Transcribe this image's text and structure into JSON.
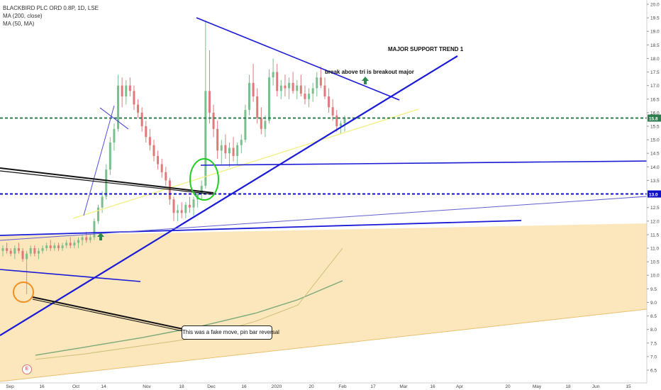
{
  "legend": {
    "symbol": "BLACKBIRD PLC ORD 0.8P, 1D, LSE",
    "ma200": "MA (200, close)",
    "ma50": "MA (50, MA)"
  },
  "annotations": {
    "major_support": "MAJOR SUPPORT TREND 1",
    "breakout": "break above tri  is breakout major",
    "fake_move": "This was a fake move, pin bar reversal",
    "earnings_flag": "E"
  },
  "colors": {
    "background": "#ffffff",
    "up_candle": "#7cbf8e",
    "down_candle": "#e07a7a",
    "trendline": "#1a1ad6",
    "support_band": "#fce3b0",
    "price_line": "#2e7d4f",
    "level_line": "#1010c8",
    "ma200": "#7aa87a",
    "ma50": "#c9c07a"
  },
  "chart_data": {
    "type": "candlestick",
    "y_axis": {
      "range": [
        6.2,
        20.05
      ],
      "ticks": [
        "6.5",
        "7.0",
        "7.5",
        "8.0",
        "8.5",
        "9.0",
        "9.5",
        "10.0",
        "10.5",
        "11.0",
        "11.5",
        "12.0",
        "12.5",
        "13.0",
        "13.5",
        "14.0",
        "14.5",
        "15.0",
        "15.5",
        "16.0",
        "16.5",
        "17.0",
        "17.5",
        "18.0",
        "18.5",
        "19.0",
        "19.5",
        "20.0"
      ]
    },
    "x_axis": {
      "labels": [
        "Sep",
        "16",
        "Oct",
        "14",
        "Nov",
        "18",
        "Dec",
        "16",
        "2020",
        "20",
        "Feb",
        "17",
        "Mar",
        "16",
        "Apr",
        "20",
        "May",
        "18",
        "Jun",
        "15"
      ]
    },
    "price_markers": [
      {
        "label": "15.8",
        "value": 15.8,
        "color": "#2e7d4f"
      },
      {
        "label": "13.0",
        "value": 13.0,
        "color": "#1010c8"
      }
    ],
    "candles": [
      [
        10.9,
        11.1,
        10.7,
        11.0
      ],
      [
        11.0,
        11.2,
        10.8,
        10.9
      ],
      [
        10.9,
        11.0,
        10.7,
        10.8
      ],
      [
        10.8,
        11.1,
        10.6,
        11.0
      ],
      [
        11.0,
        11.2,
        10.8,
        10.9
      ],
      [
        10.9,
        11.0,
        10.5,
        10.6
      ],
      [
        10.6,
        10.9,
        9.3,
        10.8
      ],
      [
        10.8,
        11.1,
        10.7,
        11.0
      ],
      [
        11.0,
        11.1,
        10.7,
        10.8
      ],
      [
        10.8,
        11.0,
        10.6,
        10.9
      ],
      [
        10.9,
        11.1,
        10.8,
        11.0
      ],
      [
        11.0,
        11.2,
        10.9,
        11.1
      ],
      [
        11.1,
        11.3,
        10.9,
        11.0
      ],
      [
        11.0,
        11.2,
        10.9,
        11.1
      ],
      [
        11.1,
        11.2,
        10.9,
        11.0
      ],
      [
        11.0,
        11.2,
        10.9,
        11.1
      ],
      [
        11.1,
        11.3,
        11.0,
        11.2
      ],
      [
        11.2,
        11.4,
        11.0,
        11.1
      ],
      [
        11.1,
        11.3,
        11.0,
        11.2
      ],
      [
        11.2,
        11.4,
        11.0,
        11.3
      ],
      [
        11.3,
        11.5,
        11.1,
        11.4
      ],
      [
        11.4,
        11.6,
        11.2,
        11.3
      ],
      [
        11.3,
        11.5,
        11.2,
        11.4
      ],
      [
        11.4,
        12.1,
        11.3,
        12.0
      ],
      [
        12.0,
        12.6,
        11.9,
        12.5
      ],
      [
        12.5,
        13.1,
        12.3,
        12.9
      ],
      [
        12.9,
        14.1,
        12.8,
        13.9
      ],
      [
        13.9,
        15.1,
        13.7,
        14.9
      ],
      [
        14.9,
        15.6,
        14.6,
        15.4
      ],
      [
        15.4,
        17.4,
        15.3,
        17.0
      ],
      [
        17.0,
        17.3,
        16.2,
        16.6
      ],
      [
        16.6,
        17.2,
        16.3,
        17.0
      ],
      [
        17.0,
        17.3,
        16.6,
        16.8
      ],
      [
        16.8,
        17.0,
        16.1,
        16.3
      ],
      [
        16.3,
        16.5,
        15.8,
        16.0
      ],
      [
        16.0,
        16.2,
        15.3,
        15.5
      ],
      [
        15.5,
        15.7,
        14.9,
        15.1
      ],
      [
        15.1,
        15.4,
        14.6,
        14.8
      ],
      [
        14.8,
        15.0,
        14.2,
        14.4
      ],
      [
        14.4,
        14.6,
        13.9,
        14.1
      ],
      [
        14.1,
        14.3,
        13.6,
        13.8
      ],
      [
        13.8,
        14.0,
        13.3,
        13.5
      ],
      [
        13.5,
        13.6,
        12.6,
        12.8
      ],
      [
        12.8,
        12.9,
        12.0,
        12.3
      ],
      [
        12.3,
        12.6,
        12.0,
        12.4
      ],
      [
        12.4,
        12.7,
        12.1,
        12.3
      ],
      [
        12.3,
        12.7,
        12.1,
        12.6
      ],
      [
        12.6,
        12.9,
        12.3,
        12.5
      ],
      [
        12.5,
        12.9,
        12.2,
        12.8
      ],
      [
        12.8,
        13.1,
        12.5,
        13.0
      ],
      [
        13.0,
        13.5,
        12.8,
        13.3
      ],
      [
        13.3,
        19.4,
        13.2,
        16.8
      ],
      [
        16.8,
        18.3,
        15.6,
        16.0
      ],
      [
        16.0,
        16.3,
        15.1,
        15.4
      ],
      [
        15.4,
        15.7,
        14.3,
        14.6
      ],
      [
        14.6,
        15.0,
        14.1,
        14.8
      ],
      [
        14.8,
        15.2,
        14.3,
        14.5
      ],
      [
        14.5,
        14.9,
        14.0,
        14.7
      ],
      [
        14.7,
        15.1,
        14.2,
        14.4
      ],
      [
        14.4,
        14.9,
        14.1,
        14.8
      ],
      [
        14.8,
        15.2,
        14.5,
        15.0
      ],
      [
        15.0,
        16.3,
        14.9,
        16.1
      ],
      [
        16.1,
        17.4,
        15.9,
        17.1
      ],
      [
        17.1,
        17.8,
        16.4,
        16.6
      ],
      [
        16.6,
        16.9,
        15.6,
        15.8
      ],
      [
        15.8,
        16.2,
        15.2,
        15.4
      ],
      [
        15.4,
        15.9,
        15.1,
        15.7
      ],
      [
        15.7,
        17.6,
        15.6,
        17.3
      ],
      [
        17.3,
        18.0,
        17.0,
        17.5
      ],
      [
        17.5,
        17.8,
        16.6,
        16.8
      ],
      [
        16.8,
        17.2,
        16.5,
        17.0
      ],
      [
        17.0,
        17.4,
        16.6,
        16.9
      ],
      [
        16.9,
        17.3,
        16.5,
        17.1
      ],
      [
        17.1,
        17.5,
        16.7,
        16.8
      ],
      [
        16.8,
        17.2,
        16.5,
        17.0
      ],
      [
        17.0,
        17.4,
        16.6,
        16.7
      ],
      [
        16.7,
        17.0,
        16.3,
        16.5
      ],
      [
        16.5,
        16.9,
        16.2,
        16.7
      ],
      [
        16.7,
        17.1,
        16.4,
        16.9
      ],
      [
        16.9,
        17.5,
        16.6,
        17.3
      ],
      [
        17.3,
        17.7,
        16.9,
        17.0
      ],
      [
        17.0,
        17.3,
        16.5,
        16.6
      ],
      [
        16.6,
        16.9,
        16.0,
        16.2
      ],
      [
        16.2,
        16.5,
        15.7,
        15.9
      ],
      [
        15.9,
        16.1,
        15.3,
        15.5
      ],
      [
        15.5,
        15.7,
        15.2,
        15.6
      ],
      [
        15.6,
        15.9,
        15.3,
        15.8
      ]
    ],
    "ma200_points": [
      [
        50,
        7.05
      ],
      [
        120,
        7.35
      ],
      [
        200,
        7.7
      ],
      [
        280,
        8.1
      ],
      [
        360,
        8.6
      ],
      [
        420,
        9.1
      ],
      [
        483,
        9.8
      ]
    ],
    "ma50_points": [
      [
        50,
        6.9
      ],
      [
        120,
        7.1
      ],
      [
        200,
        7.4
      ],
      [
        280,
        7.7
      ],
      [
        360,
        8.3
      ],
      [
        420,
        8.9
      ],
      [
        483,
        11.0
      ]
    ]
  }
}
